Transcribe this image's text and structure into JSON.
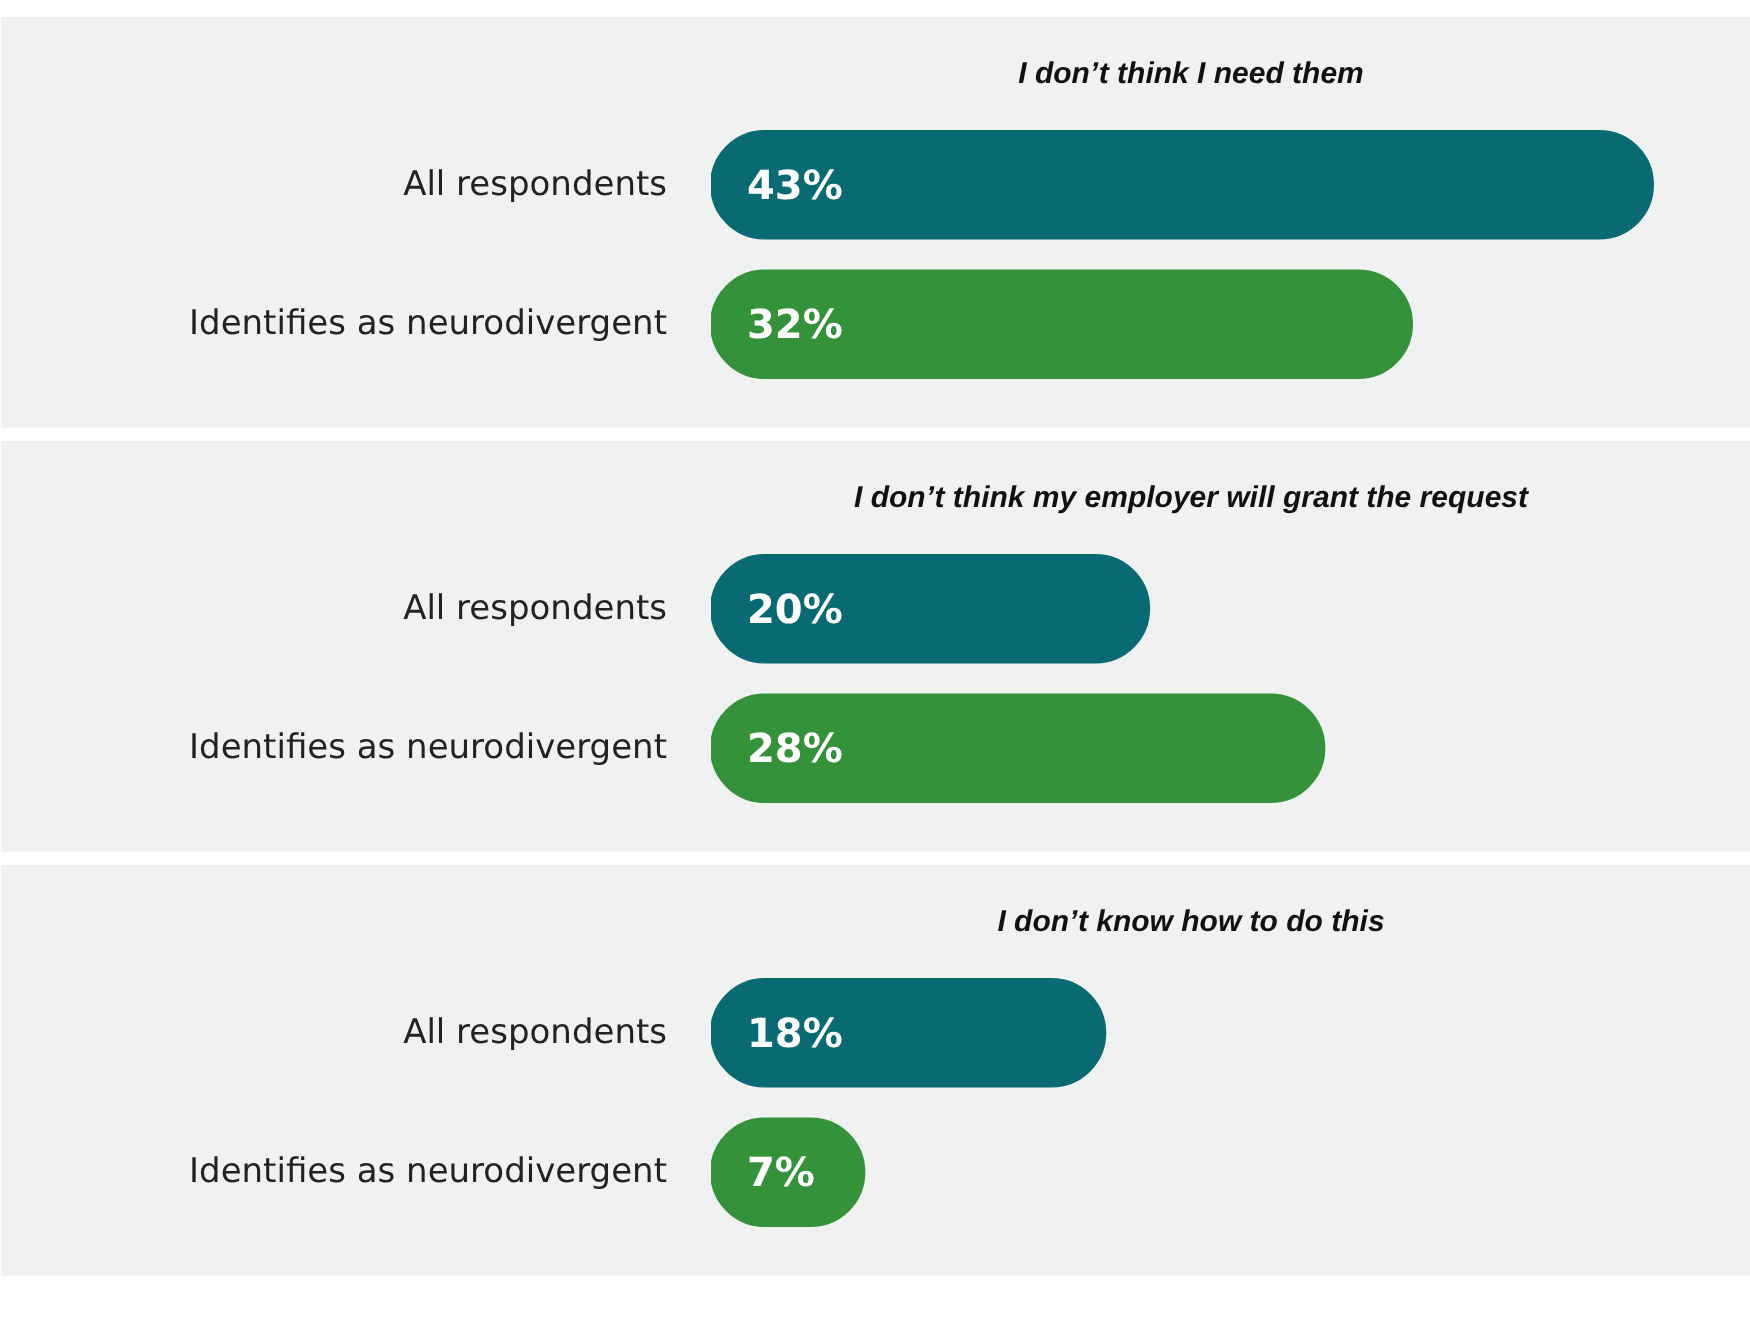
{
  "chart_data": [
    {
      "type": "bar",
      "orientation": "horizontal",
      "title": "I don’t think I need them",
      "categories": [
        "All respondents",
        "Identifies as neurodivergent"
      ],
      "values": [
        43,
        32
      ],
      "colors": [
        "#0a6a74",
        "#34923a"
      ],
      "value_labels": [
        "43%",
        "32%"
      ]
    },
    {
      "type": "bar",
      "orientation": "horizontal",
      "title": "I don’t think my employer will grant the request",
      "categories": [
        "All respondents",
        "Identifies as neurodivergent"
      ],
      "values": [
        20,
        28
      ],
      "colors": [
        "#0a6a74",
        "#34923a"
      ],
      "value_labels": [
        "20%",
        "28%"
      ]
    },
    {
      "type": "bar",
      "orientation": "horizontal",
      "title": "I don’t know how to do this",
      "categories": [
        "All respondents",
        "Identifies as neurodivergent"
      ],
      "values": [
        18,
        7
      ],
      "colors": [
        "#0a6a74",
        "#34923a"
      ],
      "value_labels": [
        "18%",
        "7%"
      ]
    }
  ]
}
